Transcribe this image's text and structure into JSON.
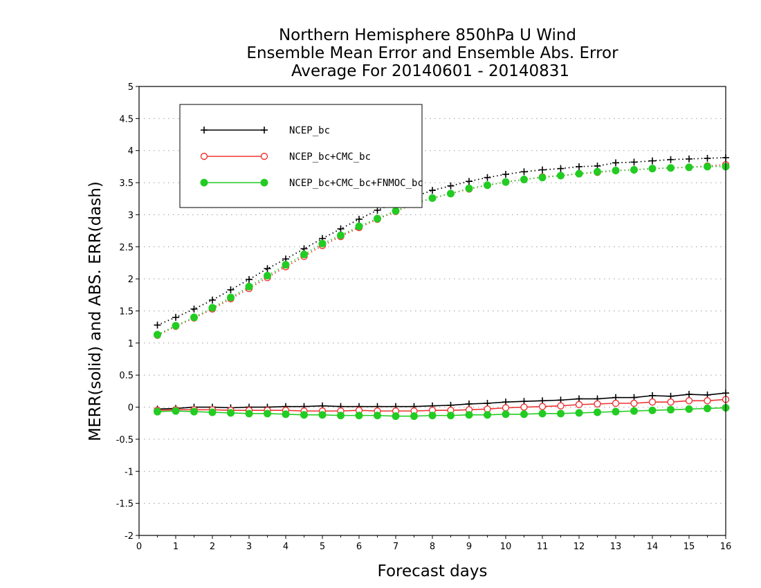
{
  "chart_data": {
    "type": "line",
    "title": [
      "Northern Hemisphere 850hPa U Wind",
      "Ensemble Mean Error and Ensemble Abs. Error",
      "Average For 20140601 - 20140831"
    ],
    "xlabel": "Forecast days",
    "ylabel": "MERR(solid) and ABS. ERR(dash)",
    "xlim": [
      0,
      16
    ],
    "ylim": [
      -2,
      5
    ],
    "xticks": [
      "0",
      "1",
      "2",
      "3",
      "4",
      "5",
      "6",
      "7",
      "8",
      "9",
      "10",
      "11",
      "12",
      "13",
      "14",
      "15",
      "16"
    ],
    "yticks": [
      "-2",
      "-1.5",
      "-1",
      "-0.5",
      "0",
      "0.5",
      "1",
      "1.5",
      "2",
      "2.5",
      "3",
      "3.5",
      "4",
      "4.5",
      "5"
    ],
    "grid": true,
    "legend_position": "top-left",
    "x": [
      0.5,
      1,
      1.5,
      2,
      2.5,
      3,
      3.5,
      4,
      4.5,
      5,
      5.5,
      6,
      6.5,
      7,
      7.5,
      8,
      8.5,
      9,
      9.5,
      10,
      10.5,
      11,
      11.5,
      12,
      12.5,
      13,
      13.5,
      14,
      14.5,
      15,
      15.5,
      16
    ],
    "series": [
      {
        "name": "NCEP_bc",
        "color": "#000000",
        "marker": "plus",
        "merr": [
          -0.03,
          -0.02,
          0,
          0,
          -0.01,
          0,
          0,
          0.01,
          0.01,
          0.02,
          0.01,
          0.01,
          0.01,
          0.01,
          0.01,
          0.02,
          0.03,
          0.05,
          0.06,
          0.08,
          0.09,
          0.1,
          0.11,
          0.13,
          0.13,
          0.15,
          0.15,
          0.18,
          0.17,
          0.2,
          0.19,
          0.22
        ],
        "abs_err": [
          1.28,
          1.4,
          1.53,
          1.67,
          1.83,
          1.99,
          2.16,
          2.31,
          2.47,
          2.63,
          2.78,
          2.93,
          3.07,
          3.19,
          3.28,
          3.38,
          3.45,
          3.52,
          3.58,
          3.63,
          3.67,
          3.7,
          3.72,
          3.75,
          3.76,
          3.81,
          3.82,
          3.84,
          3.86,
          3.87,
          3.88,
          3.89
        ]
      },
      {
        "name": "NCEP_bc+CMC_bc",
        "color": "#ee3333",
        "marker": "open-circle",
        "merr": [
          -0.05,
          -0.04,
          -0.04,
          -0.04,
          -0.05,
          -0.05,
          -0.05,
          -0.05,
          -0.06,
          -0.06,
          -0.06,
          -0.05,
          -0.06,
          -0.06,
          -0.06,
          -0.05,
          -0.05,
          -0.04,
          -0.03,
          -0.01,
          0,
          0.01,
          0.02,
          0.04,
          0.05,
          0.06,
          0.06,
          0.08,
          0.08,
          0.1,
          0.1,
          0.12
        ],
        "abs_err": [
          1.12,
          1.26,
          1.39,
          1.53,
          1.69,
          1.85,
          2.02,
          2.19,
          2.35,
          2.52,
          2.66,
          2.8,
          2.93,
          3.05,
          3.17,
          3.26,
          3.33,
          3.4,
          3.46,
          3.51,
          3.55,
          3.59,
          3.61,
          3.64,
          3.66,
          3.69,
          3.7,
          3.72,
          3.73,
          3.74,
          3.76,
          3.78
        ]
      },
      {
        "name": "NCEP_bc+CMC_bc+FNMOC_bc",
        "color": "#22cc22",
        "marker": "filled-circle",
        "merr": [
          -0.07,
          -0.06,
          -0.07,
          -0.08,
          -0.09,
          -0.1,
          -0.1,
          -0.11,
          -0.12,
          -0.12,
          -0.13,
          -0.13,
          -0.13,
          -0.14,
          -0.14,
          -0.13,
          -0.13,
          -0.12,
          -0.12,
          -0.11,
          -0.11,
          -0.1,
          -0.1,
          -0.09,
          -0.08,
          -0.07,
          -0.06,
          -0.05,
          -0.04,
          -0.03,
          -0.02,
          -0.01
        ],
        "abs_err": [
          1.13,
          1.27,
          1.4,
          1.55,
          1.71,
          1.88,
          2.05,
          2.22,
          2.38,
          2.55,
          2.68,
          2.82,
          2.94,
          3.06,
          3.17,
          3.26,
          3.33,
          3.41,
          3.46,
          3.51,
          3.55,
          3.58,
          3.61,
          3.64,
          3.67,
          3.69,
          3.7,
          3.72,
          3.73,
          3.74,
          3.75,
          3.75
        ]
      }
    ]
  }
}
